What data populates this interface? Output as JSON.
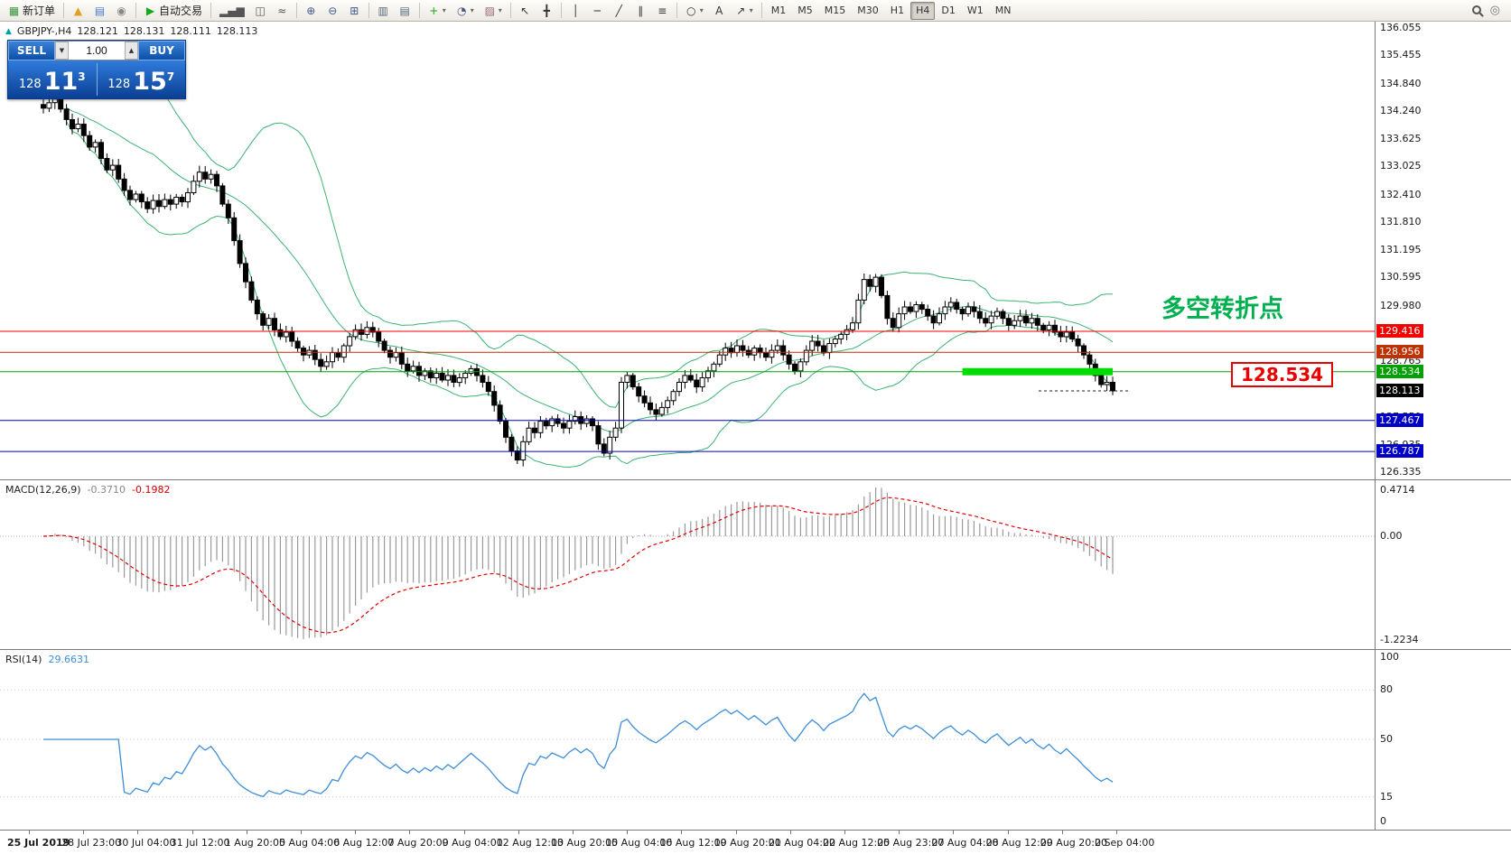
{
  "toolbar": {
    "groups": [
      [
        {
          "name": "new-order-button",
          "icon": "new-order-icon",
          "glyph": "▦",
          "color": "#3a9440",
          "label": "新订单"
        }
      ],
      [
        {
          "name": "helmet-button",
          "icon": "helmet-icon",
          "glyph": "▲",
          "color": "#e0a020"
        },
        {
          "name": "market-watch-button",
          "icon": "market-watch-icon",
          "glyph": "▤",
          "color": "#4a78c8"
        },
        {
          "name": "history-center-button",
          "icon": "history-center-icon",
          "glyph": "◉",
          "color": "#888888"
        }
      ],
      [
        {
          "name": "autotrading-button",
          "icon": "autotrading-play-icon",
          "glyph": "▶",
          "color": "#18a818",
          "label": "自动交易"
        }
      ],
      [
        {
          "name": "bar-chart-button",
          "icon": "bar-chart-icon",
          "glyph": "▂▄▆",
          "color": "#555555"
        },
        {
          "name": "candlestick-chart-button",
          "icon": "candlestick-chart-icon",
          "glyph": "◫",
          "color": "#555555"
        },
        {
          "name": "line-chart-button",
          "icon": "line-chart-icon",
          "glyph": "≈",
          "color": "#555555"
        }
      ],
      [
        {
          "name": "zoom-in-button",
          "icon": "zoom-in-icon",
          "glyph": "⊕",
          "color": "#445588"
        },
        {
          "name": "zoom-out-button",
          "icon": "zoom-out-icon",
          "glyph": "⊖",
          "color": "#445588"
        },
        {
          "name": "tile-windows-button",
          "icon": "tile-windows-icon",
          "glyph": "⊞",
          "color": "#445588"
        }
      ],
      [
        {
          "name": "arrange-horizontal-button",
          "icon": "arrange-horizontal-icon",
          "glyph": "▥",
          "color": "#556677"
        },
        {
          "name": "arrange-vertical-button",
          "icon": "arrange-vertical-icon",
          "glyph": "▤",
          "color": "#556677"
        }
      ],
      [
        {
          "name": "indicators-button",
          "icon": "indicators-add-icon",
          "glyph": "+",
          "color": "#18a818",
          "arrow": true
        },
        {
          "name": "periods-button",
          "icon": "clock-icon",
          "glyph": "◔",
          "color": "#445588",
          "arrow": true
        },
        {
          "name": "templates-button",
          "icon": "template-icon",
          "glyph": "▨",
          "color": "#996677",
          "arrow": true
        }
      ],
      [
        {
          "name": "cursor-button",
          "icon": "cursor-icon",
          "glyph": "↖",
          "color": "#333333"
        },
        {
          "name": "crosshair-button",
          "icon": "crosshair-icon",
          "glyph": "╋",
          "color": "#333333"
        }
      ],
      [
        {
          "name": "vertical-line-button",
          "icon": "vertical-line-icon",
          "glyph": "│",
          "color": "#333333"
        },
        {
          "name": "horizontal-line-button",
          "icon": "horizontal-line-icon",
          "glyph": "─",
          "color": "#333333"
        },
        {
          "name": "trendline-button",
          "icon": "trendline-icon",
          "glyph": "╱",
          "color": "#333333"
        },
        {
          "name": "channel-button",
          "icon": "channel-icon",
          "glyph": "∥",
          "color": "#333333"
        },
        {
          "name": "fibonacci-button",
          "icon": "fibonacci-icon",
          "glyph": "≡",
          "color": "#333333"
        }
      ],
      [
        {
          "name": "shapes-button",
          "icon": "shapes-icon",
          "glyph": "○",
          "color": "#333333",
          "arrow": true
        },
        {
          "name": "text-button",
          "icon": "text-icon",
          "glyph": "A",
          "color": "#333333"
        },
        {
          "name": "arrow-tool-button",
          "icon": "arrow-tool-icon",
          "glyph": "↗",
          "color": "#333333",
          "arrow": true
        }
      ],
      [
        {
          "name": "timeframe-m1-button",
          "label": "M1",
          "tf": true
        },
        {
          "name": "timeframe-m5-button",
          "label": "M5",
          "tf": true
        },
        {
          "name": "timeframe-m15-button",
          "label": "M15",
          "tf": true
        },
        {
          "name": "timeframe-m30-button",
          "label": "M30",
          "tf": true
        },
        {
          "name": "timeframe-h1-button",
          "label": "H1",
          "tf": true
        },
        {
          "name": "timeframe-h4-button",
          "label": "H4",
          "tf": true,
          "active": true
        },
        {
          "name": "timeframe-d1-button",
          "label": "D1",
          "tf": true
        },
        {
          "name": "timeframe-w1-button",
          "label": "W1",
          "tf": true
        },
        {
          "name": "timeframe-mn-button",
          "label": "MN",
          "tf": true
        }
      ]
    ]
  },
  "chart": {
    "quote": {
      "trend_icon": "▲",
      "symbol": "GBPJPY-,H4",
      "open": "128.121",
      "high": "128.131",
      "low": "128.111",
      "close": "128.113"
    },
    "trade_panel": {
      "sell_label": "SELL",
      "buy_label": "BUY",
      "volume": "1.00",
      "volume_down_glyph": "▼",
      "volume_up_glyph": "▲",
      "sell_price_prefix": "128",
      "sell_price_big": "11",
      "sell_price_sup": "3",
      "buy_price_prefix": "128",
      "buy_price_big": "15",
      "buy_price_sup": "7"
    },
    "annotations": {
      "turning_point_text": "多空转折点",
      "turning_point_color": "#00b050",
      "price_box_text": "128.534",
      "price_box_color": "#e80000"
    },
    "horizontal_lines": [
      {
        "price": 129.416,
        "color": "#f40000",
        "label": "129.416"
      },
      {
        "price": 128.956,
        "color": "#c03000",
        "label": "128.956"
      },
      {
        "price": 128.534,
        "color": "#00a000",
        "label": "128.534"
      },
      {
        "price": 127.467,
        "color": "#0000c8",
        "label": "127.467"
      },
      {
        "price": 126.787,
        "color": "#0000c8",
        "label": "126.787"
      }
    ],
    "current_price": {
      "value": 128.113,
      "label": "128.113",
      "color": "#000000"
    },
    "highlight_bar": {
      "price": 128.534,
      "start_index": 159,
      "end_index": 185,
      "color": "#00dc00"
    },
    "y_axis_labels": [
      "136.055",
      "135.455",
      "134.840",
      "134.240",
      "133.625",
      "133.025",
      "132.410",
      "131.810",
      "131.195",
      "130.595",
      "129.980",
      "129.380",
      "128.765",
      "128.165",
      "127.550",
      "126.935",
      "126.335"
    ],
    "x_axis_labels": [
      "25 Jul 2019",
      "28 Jul 23:00",
      "30 Jul 04:00",
      "31 Jul 12:00",
      "1 Aug 20:00",
      "5 Aug 04:00",
      "6 Aug 12:00",
      "7 Aug 20:00",
      "9 Aug 04:00",
      "12 Aug 12:00",
      "13 Aug 20:00",
      "15 Aug 04:00",
      "16 Aug 12:00",
      "19 Aug 20:00",
      "21 Aug 04:00",
      "22 Aug 12:00",
      "25 Aug 23:00",
      "27 Aug 04:00",
      "28 Aug 12:00",
      "29 Aug 20:00",
      "2 Sep 04:00"
    ]
  },
  "indicators": {
    "macd": {
      "label": "MACD(12,26,9)",
      "value_main": "-0.3710",
      "value_signal": "-0.1982",
      "axis": [
        "0.4714",
        "0.00",
        "-1.2234"
      ]
    },
    "rsi": {
      "label": "RSI(14)",
      "value": "29.6631",
      "axis": [
        "100",
        "80",
        "50",
        "15",
        "0"
      ]
    }
  },
  "chart_data": {
    "type": "candlestick",
    "symbol": "GBPJPY-",
    "timeframe": "H4",
    "y_range": [
      126.335,
      136.055
    ],
    "overlays": {
      "bollinger": {
        "period": 20,
        "deviation": 2
      }
    },
    "lower_panels": [
      {
        "type": "macd",
        "params": [
          12,
          26,
          9
        ]
      },
      {
        "type": "rsi",
        "params": [
          14
        ]
      }
    ],
    "style": {
      "bollinger": "#3cb371",
      "candle_up": "#ffffff",
      "candle_down": "#000000",
      "candle_border": "#000000",
      "macd_histogram": "#9a9a9a",
      "macd_signal": "#e00000",
      "rsi_line": "#3e8ed8",
      "highlight_green": "#00dc00",
      "annotation_green": "#00b050",
      "annotation_red": "#e80000"
    },
    "closes": [
      134.3,
      134.42,
      134.5,
      134.28,
      134.05,
      133.85,
      133.95,
      133.7,
      133.45,
      133.55,
      133.2,
      132.95,
      133.05,
      132.75,
      132.5,
      132.3,
      132.42,
      132.25,
      132.1,
      132.28,
      132.15,
      132.3,
      132.2,
      132.35,
      132.25,
      132.45,
      132.7,
      132.9,
      132.75,
      132.85,
      132.6,
      132.2,
      131.9,
      131.4,
      130.9,
      130.5,
      130.1,
      129.8,
      129.55,
      129.7,
      129.45,
      129.3,
      129.4,
      129.2,
      129.05,
      128.9,
      129.0,
      128.8,
      128.65,
      128.75,
      128.95,
      128.85,
      129.1,
      129.3,
      129.45,
      129.35,
      129.5,
      129.4,
      129.2,
      129.0,
      128.85,
      128.95,
      128.7,
      128.55,
      128.65,
      128.45,
      128.55,
      128.4,
      128.5,
      128.35,
      128.45,
      128.3,
      128.4,
      128.5,
      128.6,
      128.45,
      128.3,
      128.1,
      127.8,
      127.45,
      127.1,
      126.8,
      126.6,
      127.0,
      127.3,
      127.2,
      127.45,
      127.35,
      127.5,
      127.4,
      127.3,
      127.45,
      127.55,
      127.4,
      127.5,
      127.35,
      126.95,
      126.75,
      127.1,
      127.3,
      128.3,
      128.45,
      128.2,
      128.0,
      127.85,
      127.7,
      127.6,
      127.75,
      127.9,
      128.1,
      128.3,
      128.45,
      128.35,
      128.2,
      128.4,
      128.55,
      128.7,
      128.9,
      129.05,
      128.95,
      129.1,
      129.0,
      128.9,
      129.05,
      128.95,
      128.85,
      129.0,
      129.1,
      128.9,
      128.7,
      128.55,
      128.75,
      129.0,
      129.2,
      129.1,
      128.95,
      129.15,
      129.25,
      129.35,
      129.45,
      129.6,
      130.1,
      130.55,
      130.4,
      130.6,
      130.2,
      129.7,
      129.5,
      129.8,
      129.95,
      129.85,
      130.0,
      129.9,
      129.75,
      129.6,
      129.8,
      129.95,
      130.05,
      129.9,
      129.8,
      129.95,
      129.85,
      129.7,
      129.6,
      129.75,
      129.85,
      129.7,
      129.55,
      129.65,
      129.75,
      129.6,
      129.7,
      129.55,
      129.45,
      129.55,
      129.4,
      129.3,
      129.4,
      129.25,
      129.1,
      128.9,
      128.7,
      128.45,
      128.25,
      128.3,
      128.113
    ]
  }
}
